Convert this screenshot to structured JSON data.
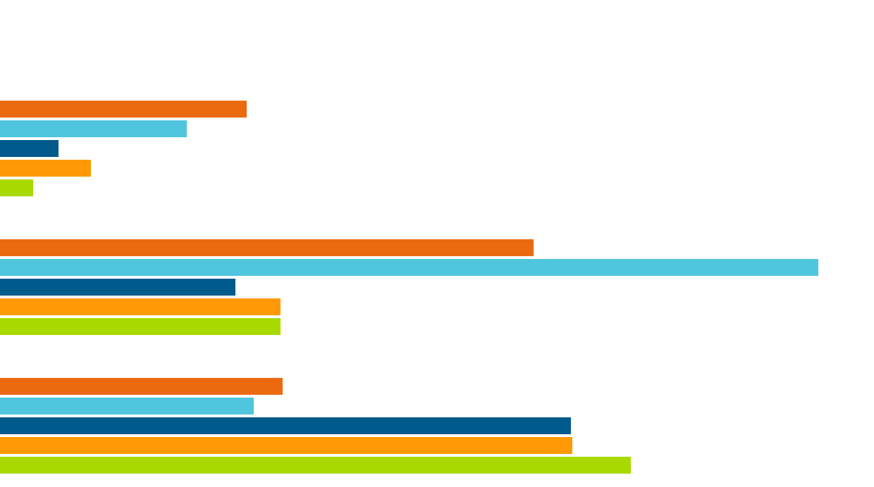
{
  "chart_data": {
    "type": "bar",
    "orientation": "horizontal",
    "categories": [
      null,
      null,
      null
    ],
    "series": [
      {
        "color": "#eb6a10",
        "values": [
          350,
          757,
          401
        ]
      },
      {
        "color": "#4fc6de",
        "values": [
          265,
          1161,
          360
        ]
      },
      {
        "color": "#005a8c",
        "values": [
          83,
          334,
          810
        ]
      },
      {
        "color": "#ff9a06",
        "values": [
          129,
          398,
          812
        ]
      },
      {
        "color": "#a8da00",
        "values": [
          47,
          398,
          895
        ]
      }
    ],
    "xlim": [
      0,
      1240
    ],
    "grid": false
  }
}
